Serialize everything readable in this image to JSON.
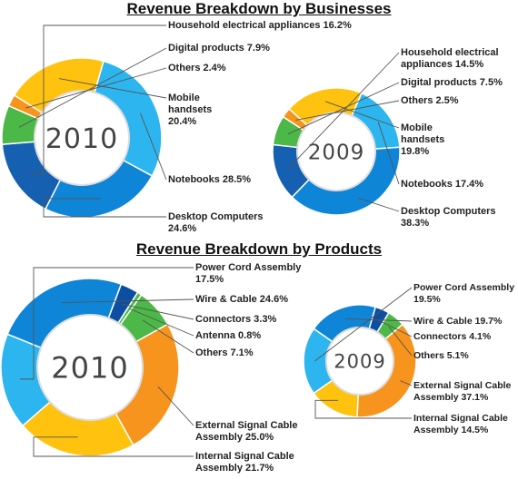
{
  "titles": {
    "businesses": "Revenue Breakdown by Businesses",
    "products": "Revenue Breakdown by Products"
  },
  "colors": {
    "dark_blue": "#1560b0",
    "green": "#4cb848",
    "orange": "#f7941d",
    "yellow": "#ffc20e",
    "light_blue": "#2cb5ee",
    "blue": "#0f85d8",
    "navy": "#0b4ea2",
    "white_sep": "#ffffff",
    "leader": "#555555"
  },
  "chart_data": [
    {
      "type": "pie",
      "title": "Revenue Breakdown by Businesses",
      "center_label": "2010",
      "slices": [
        {
          "name": "Household electrical appliances",
          "value": 16.2,
          "label": "Household electrical appliances 16.2%",
          "color": "#1560b0"
        },
        {
          "name": "Digital products",
          "value": 7.9,
          "label": "Digital products 7.9%",
          "color": "#4cb848"
        },
        {
          "name": "Others",
          "value": 2.4,
          "label": "Others 2.4%",
          "color": "#f7941d"
        },
        {
          "name": "Mobile handsets",
          "value": 20.4,
          "label": "Mobile\nhandsets\n20.4%",
          "color": "#ffc20e"
        },
        {
          "name": "Notebooks",
          "value": 28.5,
          "label": "Notebooks 28.5%",
          "color": "#2cb5ee"
        },
        {
          "name": "Desktop Computers",
          "value": 24.6,
          "label": "Desktop Computers\n24.6%",
          "color": "#0f85d8"
        }
      ]
    },
    {
      "type": "pie",
      "title": "Revenue Breakdown by Businesses",
      "center_label": "2009",
      "slices": [
        {
          "name": "Household electrical appliances",
          "value": 14.5,
          "label": "Household electrical\nappliances 14.5%",
          "color": "#1560b0"
        },
        {
          "name": "Digital products",
          "value": 7.5,
          "label": "Digital products 7.5%",
          "color": "#4cb848"
        },
        {
          "name": "Others",
          "value": 2.5,
          "label": "Others 2.5%",
          "color": "#f7941d"
        },
        {
          "name": "Mobile handsets",
          "value": 19.8,
          "label": "Mobile\nhandsets\n19.8%",
          "color": "#ffc20e"
        },
        {
          "name": "Notebooks",
          "value": 17.4,
          "label": "Notebooks 17.4%",
          "color": "#2cb5ee"
        },
        {
          "name": "Desktop Computers",
          "value": 38.3,
          "label": "Desktop Computers\n38.3%",
          "color": "#0f85d8"
        }
      ]
    },
    {
      "type": "pie",
      "title": "Revenue Breakdown by Products",
      "center_label": "2010",
      "slices": [
        {
          "name": "Power Cord Assembly",
          "value": 17.5,
          "label": "Power Cord Assembly\n17.5%",
          "color": "#2cb5ee"
        },
        {
          "name": "Wire & Cable",
          "value": 24.6,
          "label": "Wire & Cable 24.6%",
          "color": "#0f85d8"
        },
        {
          "name": "Connectors",
          "value": 3.3,
          "label": "Connectors 3.3%",
          "color": "#0b4ea2"
        },
        {
          "name": "Antenna",
          "value": 0.8,
          "label": "Antenna 0.8%",
          "color": "#4cb848"
        },
        {
          "name": "Others",
          "value": 7.1,
          "label": "Others 7.1%",
          "color": "#4cb848"
        },
        {
          "name": "External Signal Cable Assembly",
          "value": 25.0,
          "label": "External Signal Cable\nAssembly 25.0%",
          "color": "#f7941d"
        },
        {
          "name": "Internal Signal Cable Assembly",
          "value": 21.7,
          "label": "Internal Signal Cable\nAssembly 21.7%",
          "color": "#ffc20e"
        }
      ]
    },
    {
      "type": "pie",
      "title": "Revenue Breakdown by Products",
      "center_label": "2009",
      "slices": [
        {
          "name": "Power Cord Assembly",
          "value": 19.5,
          "label": "Power Cord Assembly\n19.5%",
          "color": "#2cb5ee"
        },
        {
          "name": "Wire & Cable",
          "value": 19.7,
          "label": "Wire & Cable 19.7%",
          "color": "#0f85d8"
        },
        {
          "name": "Connectors",
          "value": 4.1,
          "label": "Connectors 4.1%",
          "color": "#0b4ea2"
        },
        {
          "name": "Others",
          "value": 5.1,
          "label": "Others 5.1%",
          "color": "#4cb848"
        },
        {
          "name": "External Signal Cable Assembly",
          "value": 37.1,
          "label": "External Signal Cable\nAssembly 37.1%",
          "color": "#f7941d"
        },
        {
          "name": "Internal Signal Cable Assembly",
          "value": 14.5,
          "label": "Internal Signal Cable\nAssembly 14.5%",
          "color": "#ffc20e"
        }
      ]
    }
  ]
}
